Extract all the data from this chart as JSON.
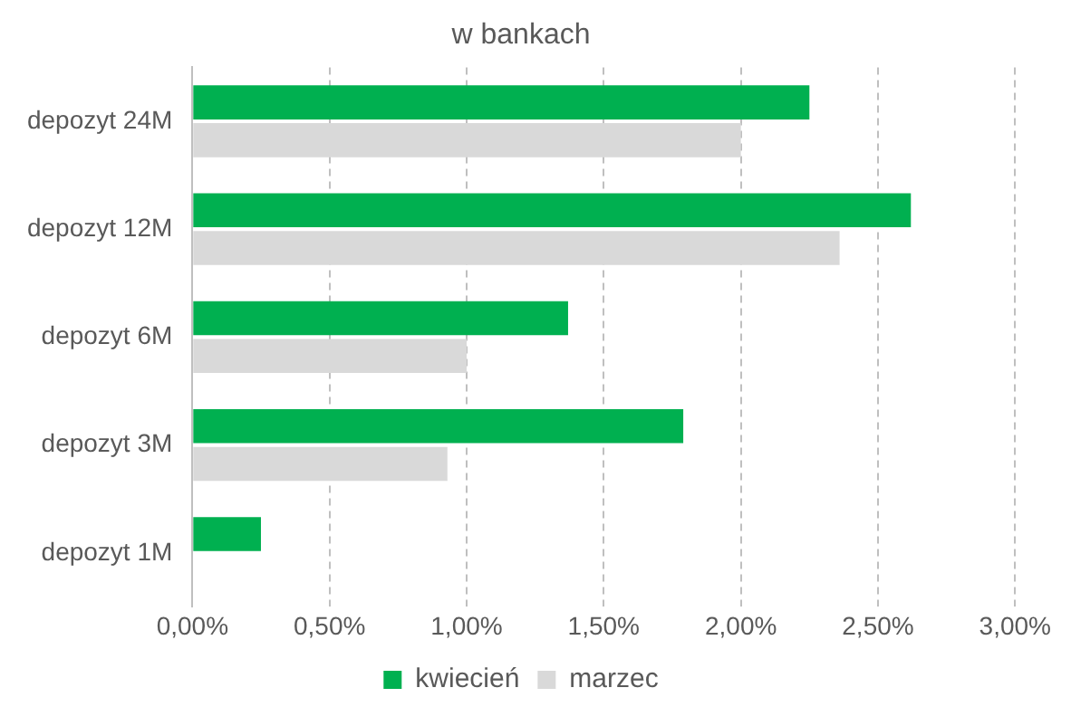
{
  "chart_data": {
    "type": "bar",
    "orientation": "horizontal",
    "title": "w bankach",
    "categories": [
      "depozyt 24M",
      "depozyt 12M",
      "depozyt 6M",
      "depozyt 3M",
      "depozyt 1M"
    ],
    "series": [
      {
        "name": "kwiecień",
        "color": "#00b050",
        "values": [
          2.25,
          2.62,
          1.37,
          1.79,
          0.25
        ]
      },
      {
        "name": "marzec",
        "color": "#d9d9d9",
        "values": [
          2.0,
          2.36,
          1.0,
          0.93,
          null
        ]
      }
    ],
    "xlim": [
      0,
      3
    ],
    "xticks": [
      {
        "value": 0,
        "label": "0,00%"
      },
      {
        "value": 0.5,
        "label": "0,50%"
      },
      {
        "value": 1,
        "label": "1,00%"
      },
      {
        "value": 1.5,
        "label": "1,50%"
      },
      {
        "value": 2,
        "label": "2,00%"
      },
      {
        "value": 2.5,
        "label": "2,50%"
      },
      {
        "value": 3,
        "label": "3,00%"
      }
    ],
    "grid": "x",
    "legend": "bottom"
  }
}
